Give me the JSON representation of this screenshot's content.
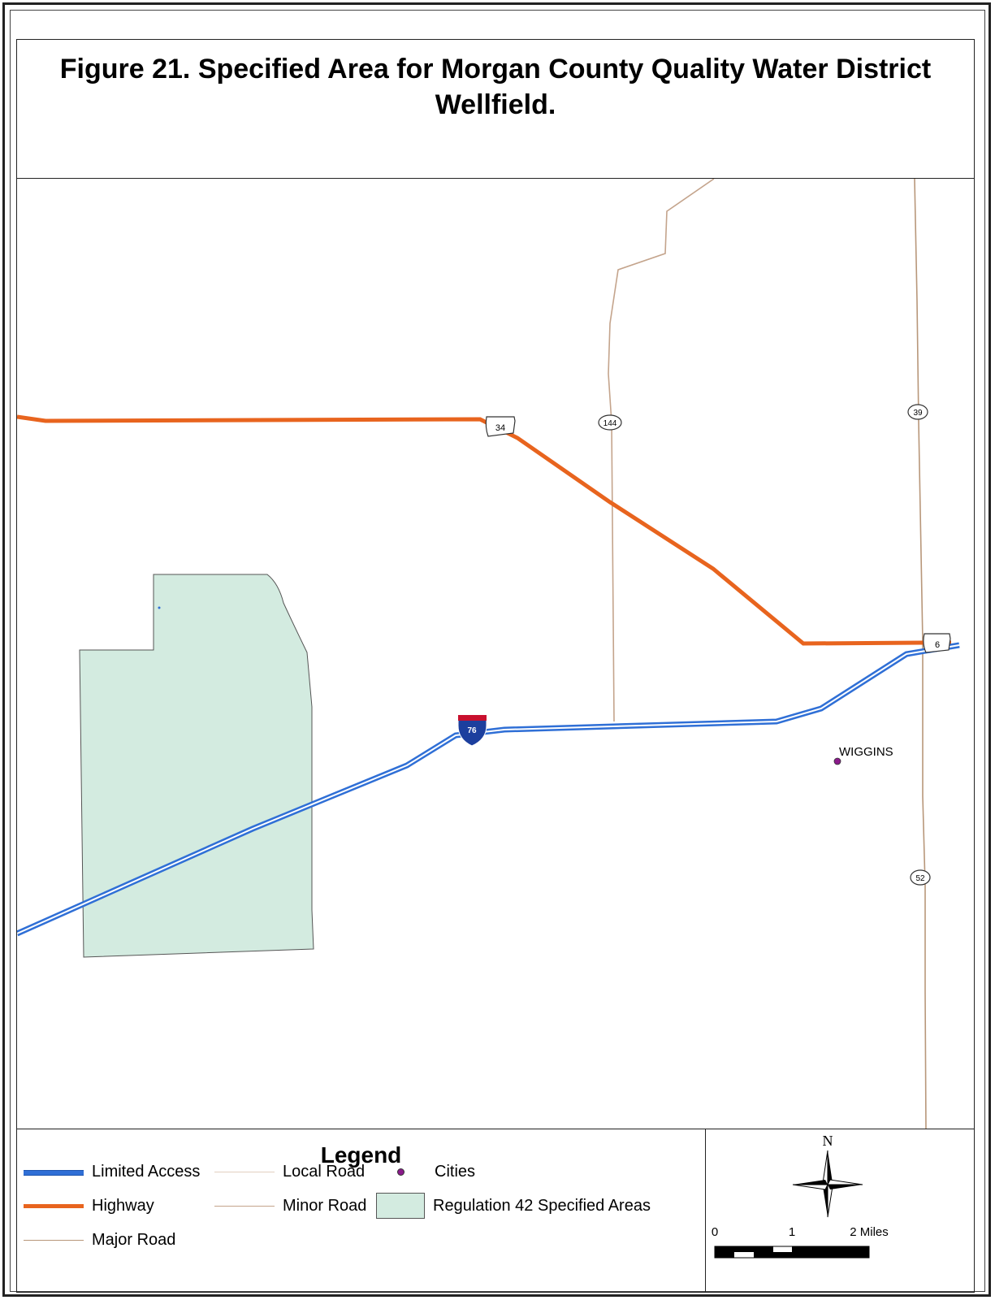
{
  "title": "Figure 21.   Specified Area for Morgan County Quality Water District Wellfield.",
  "map": {
    "city_label": "WIGGINS",
    "route_shields": {
      "us34": "34",
      "sh144": "144",
      "sh39": "39",
      "us6": "6",
      "i76": "76",
      "sh52": "52"
    },
    "colors": {
      "limited_access": "#2f6fd6",
      "highway": "#e8641e",
      "major_road": "#b8977a",
      "minor_road": "#c4a48c",
      "local_road": "#e2cfc0",
      "specified_area": "#d3ebe0",
      "city": "#8b1a8b"
    }
  },
  "legend": {
    "title": "Legend",
    "items": {
      "limited_access": "Limited Access",
      "highway": "Highway",
      "major_road": "Major Road",
      "local_road": "Local Road",
      "minor_road": "Minor Road",
      "cities": "Cities",
      "regulation_42": "Regulation 42 Specified Areas"
    }
  },
  "north_arrow": {
    "label": "N"
  },
  "scale_bar": {
    "label_0": "0",
    "label_1": "1",
    "label_2": "2 Miles"
  }
}
